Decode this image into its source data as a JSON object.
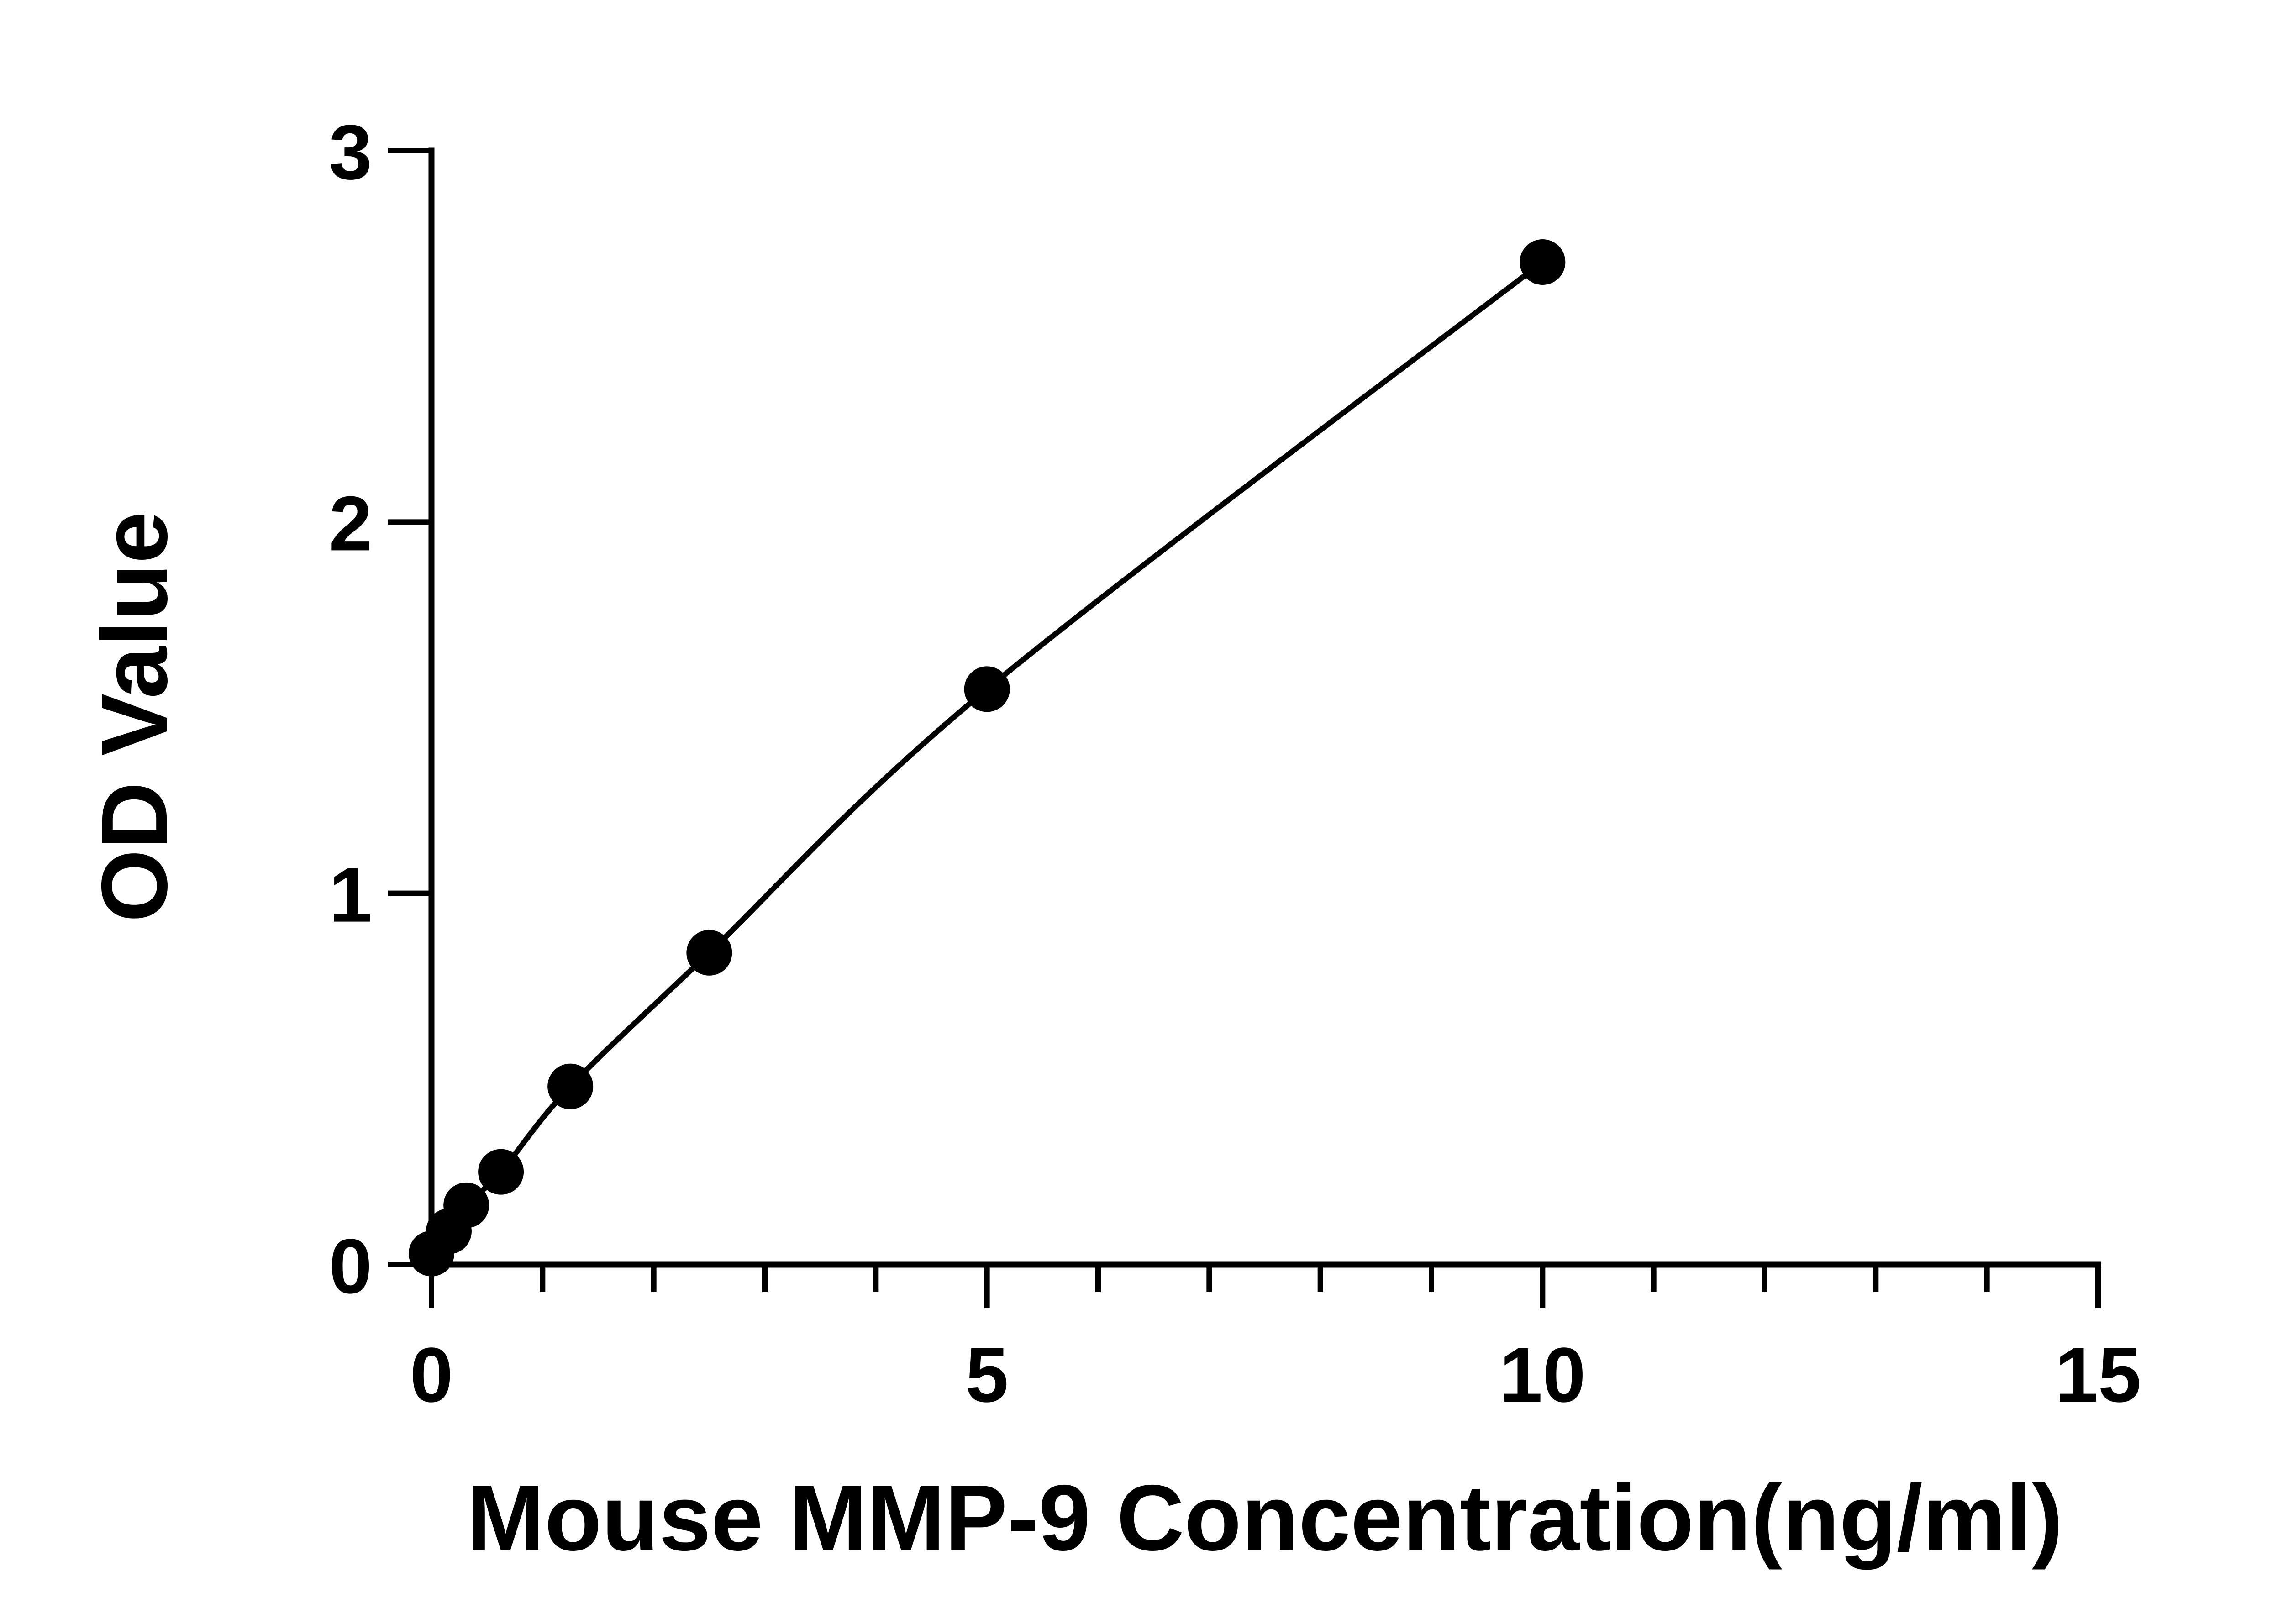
{
  "chart_data": {
    "type": "line",
    "title": "",
    "xlabel": "Mouse MMP-9 Concentration(ng/ml)",
    "ylabel": "OD Value",
    "xlim": [
      0,
      15
    ],
    "ylim": [
      0,
      3
    ],
    "x_ticks": [
      0,
      5,
      10,
      15
    ],
    "x_tick_labels": [
      "0",
      "5",
      "10",
      "15"
    ],
    "x_minor_tick_step": 1,
    "y_ticks": [
      0,
      1,
      2,
      3
    ],
    "y_tick_labels": [
      "0",
      "1",
      "2",
      "3"
    ],
    "grid": false,
    "legend": "none",
    "colors": {
      "line": "#000000",
      "marker": "#000000",
      "axis": "#000000"
    },
    "series": [
      {
        "x": [
          0,
          0.156,
          0.313,
          0.625,
          1.25,
          2.5,
          5,
          10
        ],
        "y": [
          0.03,
          0.09,
          0.16,
          0.25,
          0.48,
          0.84,
          1.55,
          2.7
        ]
      }
    ]
  }
}
